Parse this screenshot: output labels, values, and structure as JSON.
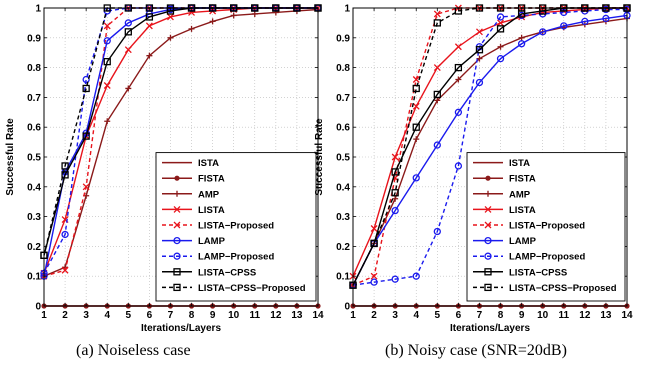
{
  "chart_data": [
    {
      "type": "line",
      "caption": "(a) Noiseless case",
      "xlabel": "Iterations/Layers",
      "ylabel": "Successful Rate",
      "xlim": [
        1,
        14
      ],
      "ylim": [
        0,
        1
      ],
      "xticks": [
        "1",
        "2",
        "3",
        "4",
        "5",
        "6",
        "7",
        "8",
        "9",
        "10",
        "11",
        "12",
        "13",
        "14"
      ],
      "yticks": [
        "0",
        "0.1",
        "0.2",
        "0.3",
        "0.4",
        "0.5",
        "0.6",
        "0.7",
        "0.8",
        "0.9",
        "1"
      ],
      "grid": true,
      "legend_position": "bottom-right",
      "x": [
        1,
        2,
        3,
        4,
        5,
        6,
        7,
        8,
        9,
        10,
        11,
        12,
        13,
        14
      ],
      "series": [
        {
          "name": "ISTA",
          "color": "#8b1a1a",
          "style": "solid",
          "marker": "none",
          "values": [
            0,
            0,
            0,
            0,
            0,
            0,
            0,
            0,
            0,
            0,
            0,
            0,
            0,
            0
          ]
        },
        {
          "name": "FISTA",
          "color": "#8b1a1a",
          "style": "solid",
          "marker": "dot",
          "values": [
            0,
            0,
            0,
            0,
            0,
            0,
            0,
            0,
            0,
            0,
            0,
            0,
            0,
            0
          ]
        },
        {
          "name": "AMP",
          "color": "#8b1a1a",
          "style": "solid",
          "marker": "plus",
          "values": [
            0.1,
            0.13,
            0.37,
            0.62,
            0.73,
            0.84,
            0.9,
            0.93,
            0.955,
            0.975,
            0.98,
            0.985,
            0.99,
            0.995
          ]
        },
        {
          "name": "LISTA",
          "color": "#e8141c",
          "style": "solid",
          "marker": "x",
          "values": [
            0.11,
            0.29,
            0.57,
            0.74,
            0.86,
            0.94,
            0.97,
            0.985,
            0.99,
            0.995,
            1,
            1,
            1,
            1
          ]
        },
        {
          "name": "LISTA−Proposed",
          "color": "#e8141c",
          "style": "dashed",
          "marker": "x",
          "values": [
            0.1,
            0.12,
            0.4,
            0.94,
            1,
            1,
            1,
            1,
            1,
            1,
            1,
            1,
            1,
            1
          ]
        },
        {
          "name": "LAMP",
          "color": "#1a1aee",
          "style": "solid",
          "marker": "circle",
          "values": [
            0.1,
            0.45,
            0.58,
            0.89,
            0.95,
            0.98,
            0.995,
            1,
            1,
            1,
            1,
            1,
            1,
            1
          ]
        },
        {
          "name": "LAMP−Proposed",
          "color": "#1a1aee",
          "style": "dashed",
          "marker": "circle",
          "values": [
            0.11,
            0.24,
            0.76,
            0.99,
            1,
            1,
            1,
            1,
            1,
            1,
            1,
            1,
            1,
            1
          ]
        },
        {
          "name": "LISTA−CPSS",
          "color": "#000000",
          "style": "solid",
          "marker": "square",
          "values": [
            0.17,
            0.44,
            0.57,
            0.82,
            0.92,
            0.97,
            0.99,
            1,
            1,
            1,
            1,
            1,
            1,
            1
          ]
        },
        {
          "name": "LISTA−CPSS−Proposed",
          "color": "#000000",
          "style": "dashed",
          "marker": "square",
          "values": [
            0.17,
            0.47,
            0.73,
            1,
            1,
            1,
            1,
            1,
            1,
            1,
            1,
            1,
            1,
            1
          ]
        }
      ]
    },
    {
      "type": "line",
      "caption": "(b) Noisy case (SNR=20dB)",
      "xlabel": "Iterations/Layers",
      "ylabel": "Successful Rate",
      "xlim": [
        1,
        14
      ],
      "ylim": [
        0,
        1
      ],
      "xticks": [
        "1",
        "2",
        "3",
        "4",
        "5",
        "6",
        "7",
        "8",
        "9",
        "10",
        "11",
        "12",
        "13",
        "14"
      ],
      "yticks": [
        "0",
        "0.1",
        "0.2",
        "0.3",
        "0.4",
        "0.5",
        "0.6",
        "0.7",
        "0.8",
        "0.9",
        "1"
      ],
      "grid": true,
      "legend_position": "bottom-right",
      "x": [
        1,
        2,
        3,
        4,
        5,
        6,
        7,
        8,
        9,
        10,
        11,
        12,
        13,
        14
      ],
      "series": [
        {
          "name": "ISTA",
          "color": "#8b1a1a",
          "style": "solid",
          "marker": "none",
          "values": [
            0,
            0,
            0,
            0,
            0,
            0,
            0,
            0,
            0,
            0,
            0,
            0,
            0,
            0
          ]
        },
        {
          "name": "FISTA",
          "color": "#8b1a1a",
          "style": "solid",
          "marker": "dot",
          "values": [
            0,
            0,
            0,
            0,
            0,
            0,
            0,
            0,
            0,
            0,
            0,
            0,
            0,
            0
          ]
        },
        {
          "name": "AMP",
          "color": "#8b1a1a",
          "style": "solid",
          "marker": "plus",
          "values": [
            0.07,
            0.21,
            0.36,
            0.56,
            0.69,
            0.76,
            0.83,
            0.87,
            0.9,
            0.92,
            0.935,
            0.945,
            0.955,
            0.965
          ]
        },
        {
          "name": "LISTA",
          "color": "#e8141c",
          "style": "solid",
          "marker": "x",
          "values": [
            0.1,
            0.26,
            0.5,
            0.67,
            0.8,
            0.87,
            0.92,
            0.95,
            0.97,
            0.985,
            0.99,
            0.995,
            1,
            1
          ]
        },
        {
          "name": "LISTA−Proposed",
          "color": "#e8141c",
          "style": "dashed",
          "marker": "x",
          "values": [
            0.07,
            0.1,
            0.43,
            0.76,
            0.98,
            1,
            1,
            1,
            1,
            1,
            1,
            1,
            1,
            1
          ]
        },
        {
          "name": "LAMP",
          "color": "#1a1aee",
          "style": "solid",
          "marker": "circle",
          "values": [
            0.07,
            0.21,
            0.32,
            0.43,
            0.54,
            0.65,
            0.75,
            0.83,
            0.88,
            0.92,
            0.94,
            0.955,
            0.965,
            0.975
          ]
        },
        {
          "name": "LAMP−Proposed",
          "color": "#1a1aee",
          "style": "dashed",
          "marker": "circle",
          "values": [
            0.07,
            0.08,
            0.09,
            0.1,
            0.25,
            0.47,
            0.87,
            0.97,
            0.975,
            0.98,
            0.985,
            0.99,
            0.995,
            0.995
          ]
        },
        {
          "name": "LISTA−CPSS",
          "color": "#000000",
          "style": "solid",
          "marker": "square",
          "values": [
            0.07,
            0.21,
            0.45,
            0.6,
            0.71,
            0.8,
            0.86,
            0.93,
            0.98,
            0.99,
            1,
            1,
            1,
            1
          ]
        },
        {
          "name": "LISTA−CPSS−Proposed",
          "color": "#000000",
          "style": "dashed",
          "marker": "square",
          "values": [
            0.07,
            0.21,
            0.38,
            0.73,
            0.95,
            0.99,
            1,
            1,
            1,
            1,
            1,
            1,
            1,
            1
          ]
        }
      ]
    }
  ]
}
